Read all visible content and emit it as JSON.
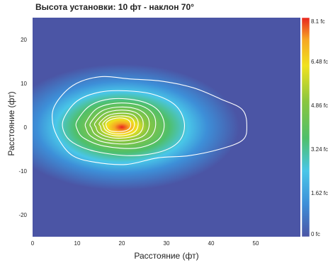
{
  "chart_data": {
    "type": "heatmap",
    "title": "Высота установки: 10 фт - наклон 70°",
    "xlabel": "Расстояние (фт)",
    "ylabel": "Расстояние (фт)",
    "xlim": [
      0,
      60
    ],
    "ylim": [
      -25,
      25
    ],
    "x_ticks": [
      0,
      10,
      20,
      30,
      40,
      50
    ],
    "y_ticks": [
      20,
      10,
      0,
      -10,
      -20
    ],
    "colorbar": {
      "unit": "fc",
      "min": 0,
      "max": 8.1,
      "ticks": [
        {
          "value": 8.1,
          "label": "8.1 fc"
        },
        {
          "value": 6.48,
          "label": "6.48 fc"
        },
        {
          "value": 4.86,
          "label": "4.86 fc"
        },
        {
          "value": 3.24,
          "label": "3.24 fc"
        },
        {
          "value": 1.62,
          "label": "1.62 fc"
        },
        {
          "value": 0,
          "label": "0 fc"
        }
      ],
      "colors": [
        "#4b55a5",
        "#3d8fd8",
        "#49c6e8",
        "#4fbf6a",
        "#8bc63f",
        "#f0e21e",
        "#f6a623",
        "#e8251f"
      ]
    },
    "peak": {
      "x": 19,
      "y": 0.5,
      "value": 8.1
    },
    "contours": [
      {
        "value": 0.4,
        "points": [
          [
            5,
            5
          ],
          [
            9,
            9.5
          ],
          [
            15,
            11.5
          ],
          [
            22,
            11
          ],
          [
            29,
            10.5
          ],
          [
            36,
            9
          ],
          [
            42,
            6.5
          ],
          [
            47,
            4
          ],
          [
            48,
            0
          ],
          [
            47,
            -3
          ],
          [
            42,
            -5
          ],
          [
            35,
            -6.5
          ],
          [
            28,
            -7
          ],
          [
            21,
            -8.5
          ],
          [
            14,
            -8
          ],
          [
            9,
            -6.5
          ],
          [
            6,
            -3
          ],
          [
            4.5,
            1
          ]
        ]
      },
      {
        "value": 1.2,
        "points": [
          [
            7,
            2
          ],
          [
            10,
            6
          ],
          [
            15,
            8
          ],
          [
            21,
            8.3
          ],
          [
            27,
            7.5
          ],
          [
            32,
            5
          ],
          [
            34,
            1
          ],
          [
            33,
            -3
          ],
          [
            29,
            -5.5
          ],
          [
            22,
            -6.5
          ],
          [
            14,
            -5.5
          ],
          [
            9,
            -3.5
          ],
          [
            7,
            -1
          ]
        ]
      },
      {
        "value": 2.0,
        "points": [
          [
            10,
            1.5
          ],
          [
            13,
            5
          ],
          [
            18,
            6.5
          ],
          [
            24,
            6
          ],
          [
            28,
            4
          ],
          [
            29.5,
            0.5
          ],
          [
            28,
            -3
          ],
          [
            23,
            -4.8
          ],
          [
            16,
            -4.3
          ],
          [
            11.5,
            -2.5
          ],
          [
            10,
            -0.5
          ]
        ]
      },
      {
        "value": 2.8,
        "points": [
          [
            12,
            1.2
          ],
          [
            14.5,
            4.3
          ],
          [
            19,
            5.5
          ],
          [
            24,
            5
          ],
          [
            27,
            3
          ],
          [
            27.5,
            0
          ],
          [
            26,
            -2.5
          ],
          [
            21.5,
            -3.8
          ],
          [
            16,
            -3.4
          ],
          [
            13,
            -2
          ],
          [
            12,
            -0.3
          ]
        ]
      },
      {
        "value": 3.6,
        "points": [
          [
            13,
            1
          ],
          [
            15.5,
            3.7
          ],
          [
            19.5,
            4.6
          ],
          [
            23.5,
            4.1
          ],
          [
            25.8,
            2.3
          ],
          [
            26,
            -0.3
          ],
          [
            24.5,
            -2.2
          ],
          [
            20.5,
            -3.1
          ],
          [
            16.5,
            -2.8
          ],
          [
            14,
            -1.6
          ],
          [
            13.2,
            -0.2
          ]
        ]
      },
      {
        "value": 4.4,
        "points": [
          [
            14,
            1
          ],
          [
            16.3,
            3.2
          ],
          [
            19.8,
            3.9
          ],
          [
            23,
            3.4
          ],
          [
            24.6,
            1.8
          ],
          [
            24.6,
            -0.4
          ],
          [
            23.2,
            -1.9
          ],
          [
            19.8,
            -2.5
          ],
          [
            16.8,
            -2.2
          ],
          [
            14.8,
            -1.2
          ],
          [
            14.2,
            0
          ]
        ]
      },
      {
        "value": 5.2,
        "points": [
          [
            15,
            1
          ],
          [
            17,
            2.7
          ],
          [
            20,
            3.2
          ],
          [
            22.5,
            2.8
          ],
          [
            23.6,
            1.4
          ],
          [
            23.4,
            -0.4
          ],
          [
            22.2,
            -1.5
          ],
          [
            19.6,
            -2
          ],
          [
            17.2,
            -1.7
          ],
          [
            15.6,
            -0.9
          ],
          [
            15.2,
            0.2
          ]
        ]
      },
      {
        "value": 6.0,
        "points": [
          [
            15.8,
            1
          ],
          [
            17.5,
            2.3
          ],
          [
            20,
            2.6
          ],
          [
            22,
            2.2
          ],
          [
            22.8,
            1
          ],
          [
            22.5,
            -0.4
          ],
          [
            21.3,
            -1.2
          ],
          [
            19.4,
            -1.5
          ],
          [
            17.5,
            -1.3
          ],
          [
            16.3,
            -0.6
          ],
          [
            15.9,
            0.3
          ]
        ]
      },
      {
        "value": 7.0,
        "points": [
          [
            16.5,
            1
          ],
          [
            18,
            1.9
          ],
          [
            20,
            2.1
          ],
          [
            21.5,
            1.6
          ],
          [
            22,
            0.6
          ],
          [
            21.6,
            -0.4
          ],
          [
            20.4,
            -0.9
          ],
          [
            18.8,
            -1
          ],
          [
            17.4,
            -0.8
          ],
          [
            16.7,
            -0.2
          ]
        ]
      }
    ]
  }
}
